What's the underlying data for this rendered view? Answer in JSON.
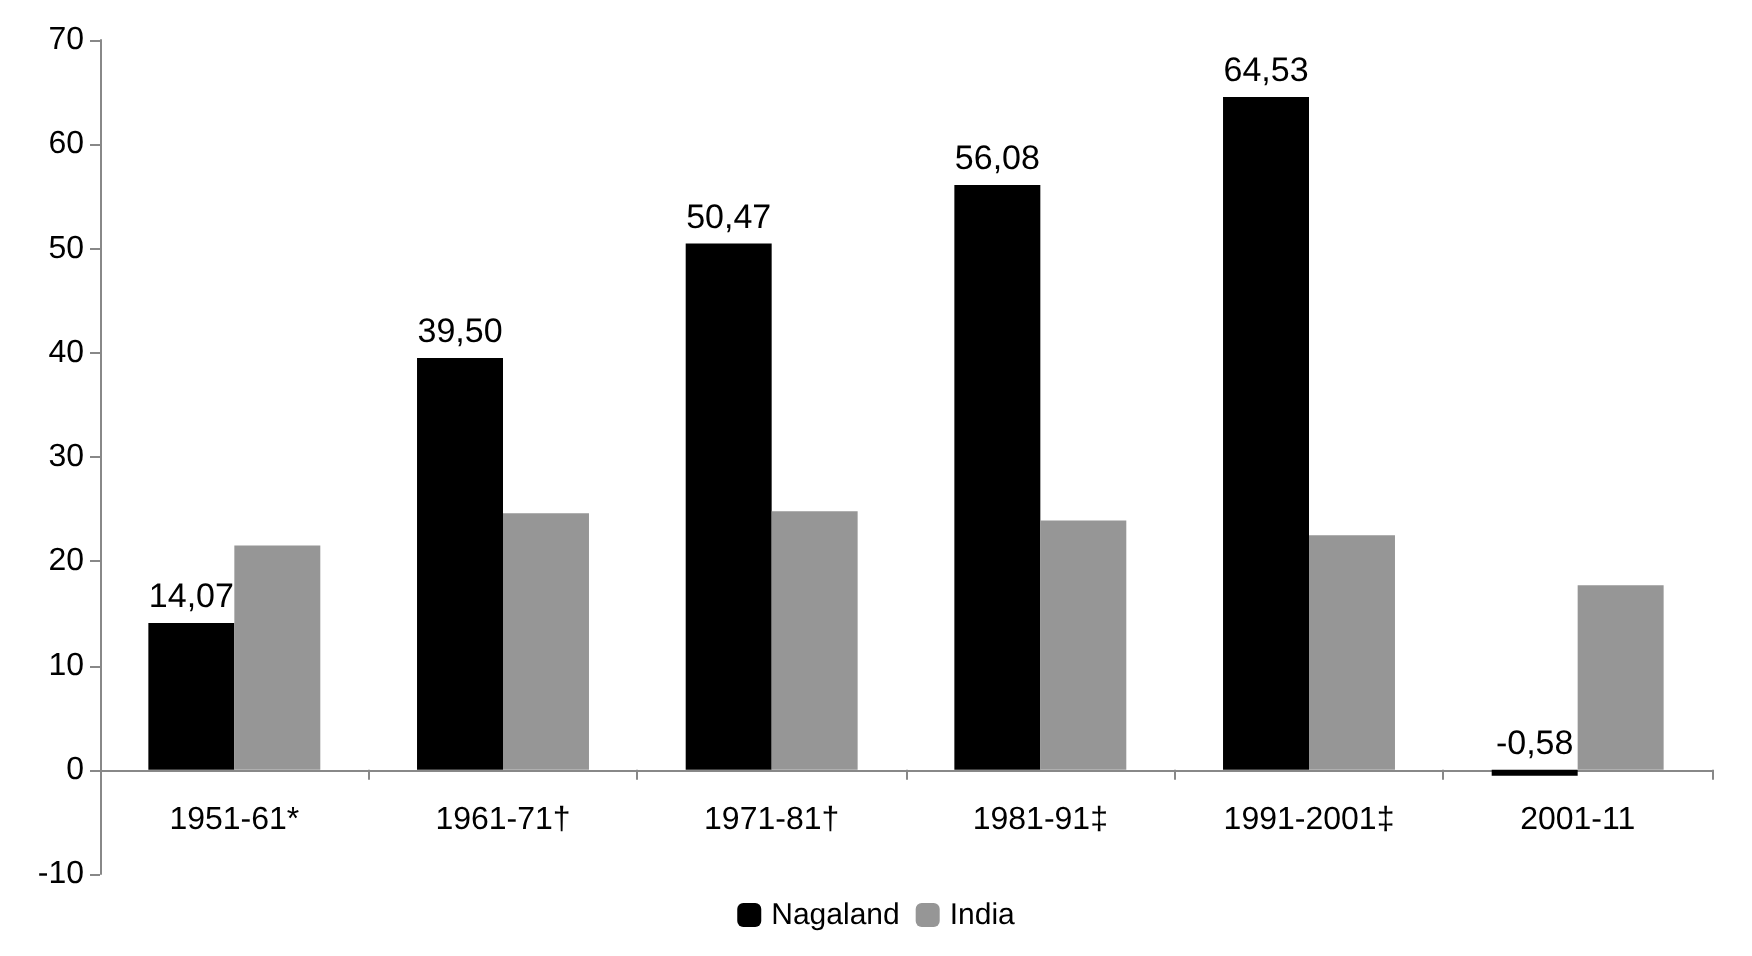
{
  "chart_data": {
    "type": "bar",
    "categories": [
      "1951-61*",
      "1961-71†",
      "1971-81†",
      "1981-91‡",
      "1991-2001‡",
      "2001-11"
    ],
    "series": [
      {
        "name": "Nagaland",
        "color": "#000000",
        "values": [
          14.07,
          39.5,
          50.47,
          56.08,
          64.53,
          -0.58
        ],
        "value_labels": [
          "14,07",
          "39,50",
          "50,47",
          "56,08",
          "64,53",
          "-0,58"
        ]
      },
      {
        "name": "India",
        "color": "#969696",
        "values": [
          21.5,
          24.6,
          24.8,
          23.9,
          22.5,
          17.7
        ]
      }
    ],
    "ylim": [
      -10,
      70
    ],
    "yticks": [
      -10,
      0,
      10,
      20,
      30,
      40,
      50,
      60,
      70
    ],
    "grid": false,
    "legend": "bottom"
  }
}
